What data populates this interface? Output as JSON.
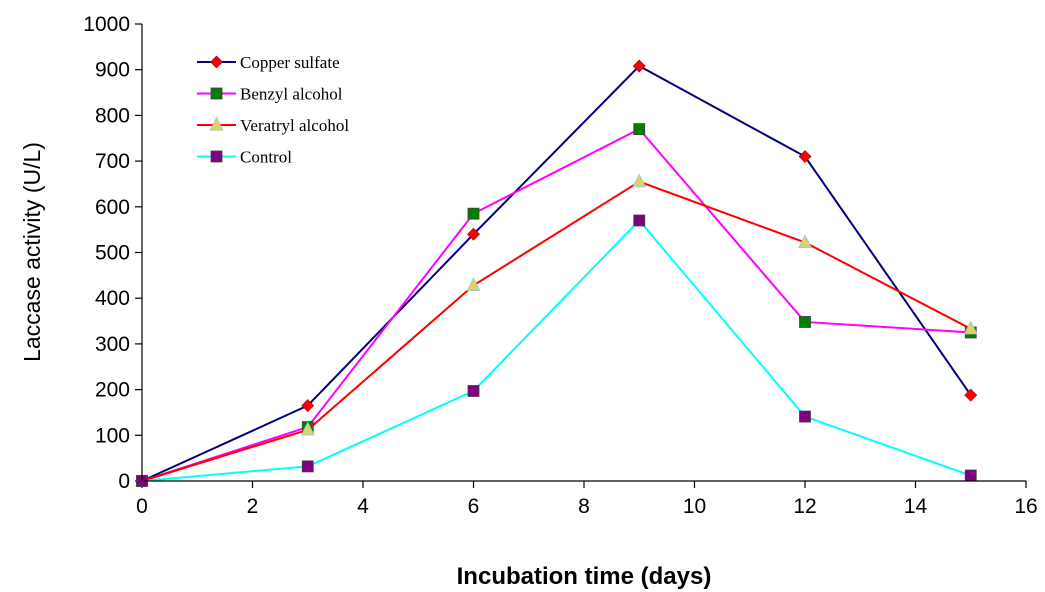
{
  "chart_data": {
    "type": "line",
    "xlabel": "Incubation time (days)",
    "ylabel": "Laccase activity (U/L)",
    "xlim": [
      0,
      16
    ],
    "ylim": [
      0,
      1000
    ],
    "x_ticks": [
      "0",
      "2",
      "4",
      "6",
      "8",
      "10",
      "12",
      "14",
      "16"
    ],
    "y_ticks": [
      "0",
      "100",
      "200",
      "300",
      "400",
      "500",
      "600",
      "700",
      "800",
      "900",
      "1000"
    ],
    "grid": false,
    "legend_position": "top-left",
    "x": [
      0,
      3,
      6,
      9,
      12,
      15
    ],
    "series": [
      {
        "name": "Copper sulfate",
        "values": [
          0,
          165,
          540,
          908,
          710,
          188
        ],
        "line_color": "#000080",
        "marker": "diamond",
        "marker_color": "#ff0000"
      },
      {
        "name": "Benzyl alcohol",
        "values": [
          0,
          118,
          585,
          770,
          348,
          325
        ],
        "line_color": "#ff00ff",
        "marker": "square",
        "marker_color": "#008000"
      },
      {
        "name": "Veratryl alcohol",
        "values": [
          0,
          112,
          428,
          655,
          522,
          333
        ],
        "line_color": "#ff0000",
        "marker": "triangle",
        "marker_color": "#e8d060"
      },
      {
        "name": "Control",
        "values": [
          0,
          32,
          197,
          570,
          141,
          12
        ],
        "line_color": "#00ffff",
        "marker": "square",
        "marker_color": "#800080"
      }
    ]
  }
}
